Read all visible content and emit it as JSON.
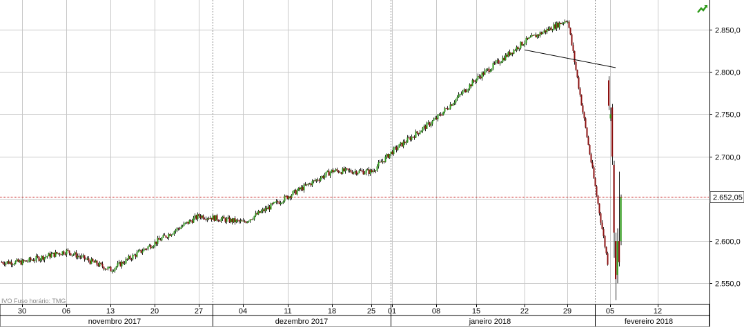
{
  "footer": {
    "text": "IVO   Fuso horário: TMG"
  },
  "last_price_label": "2.652,05",
  "chart_data": {
    "type": "candlestick",
    "ylim": [
      2525,
      2885
    ],
    "y_ticks": [
      {
        "value": 2550,
        "label": "2.550,0"
      },
      {
        "value": 2600,
        "label": "2.600,0"
      },
      {
        "value": 2650,
        "label": "2.650,0"
      },
      {
        "value": 2700,
        "label": "2.700,0"
      },
      {
        "value": 2750,
        "label": "2.750,0"
      },
      {
        "value": 2800,
        "label": "2.800,0"
      },
      {
        "value": 2850,
        "label": "2.850,0"
      }
    ],
    "x_ticks": [
      "30",
      "06",
      "13",
      "20",
      "27",
      "04",
      "11",
      "18",
      "25",
      "01",
      "08",
      "15",
      "22",
      "29",
      "05",
      "12"
    ],
    "months": [
      "novembro 2017",
      "dezembro 2017",
      "janeiro 2018",
      "fevereiro 2018"
    ],
    "last_price": 2652.05,
    "grid": true,
    "colors": {
      "up": "#2e9a1a",
      "down": "#8b1010",
      "last_price_line": "#c00000",
      "month_sep": "#888888"
    },
    "icon": "trend-up-arrow-icon",
    "trendline": {
      "from": {
        "day": "22",
        "value": 2826
      },
      "to": {
        "day": "05",
        "value": 2805
      }
    },
    "series_path": [
      {
        "day": "30",
        "value": 2575
      },
      {
        "day": "06",
        "value": 2588
      },
      {
        "day": "13",
        "value": 2566
      },
      {
        "day": "20",
        "value": 2598
      },
      {
        "day": "27",
        "value": 2630
      },
      {
        "day": "04",
        "value": 2622
      },
      {
        "day": "11",
        "value": 2653
      },
      {
        "day": "18",
        "value": 2683
      },
      {
        "day": "25",
        "value": 2682
      },
      {
        "day": "01",
        "value": 2706
      },
      {
        "day": "08",
        "value": 2745
      },
      {
        "day": "15",
        "value": 2792
      },
      {
        "day": "22",
        "value": 2836
      },
      {
        "day": "29",
        "value": 2862
      },
      {
        "day": "05",
        "value": 2555
      }
    ]
  }
}
